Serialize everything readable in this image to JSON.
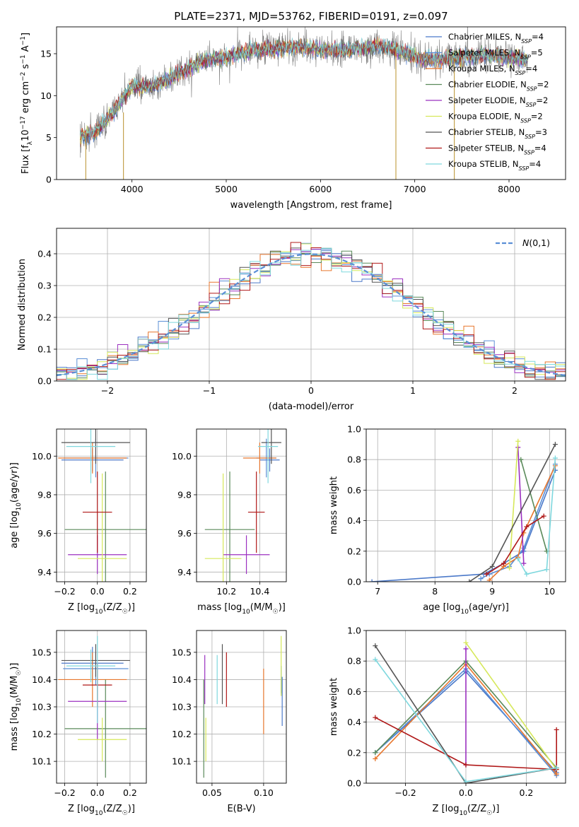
{
  "figure_title": "PLATE=2371, MJD=53762, FIBERID=0191, z=0.097",
  "series_colors": {
    "Chabrier MILES": "#4b79c9",
    "Salpeter MILES": "#5b8fd6",
    "Kroupa MILES": "#e8772e",
    "Chabrier ELODIE": "#5a8a5a",
    "Salpeter ELODIE": "#9b30c0",
    "Kroupa ELODIE": "#d6e85a",
    "Chabrier STELIB": "#555555",
    "Salpeter STELIB": "#b01818",
    "Kroupa STELIB": "#7fd8de"
  },
  "chart_data": [
    {
      "id": "spectrum",
      "type": "line",
      "title": "PLATE=2371, MJD=53762, FIBERID=0191, z=0.097",
      "xlabel": "wavelength [Angstrom, rest frame]",
      "ylabel": "Flux [f_λ10^-17 erg cm^-2 s^-1 A^-1]",
      "xlim": [
        3200,
        8600
      ],
      "ylim": [
        0,
        18.2
      ],
      "x_ticks": [
        4000,
        5000,
        6000,
        7000,
        8000
      ],
      "y_ticks": [
        0,
        5,
        10,
        15
      ],
      "grid": false,
      "legend_position": "right",
      "legend": [
        {
          "base": "Chabrier MILES, N",
          "sub": "SSP",
          "tail": "=4"
        },
        {
          "base": "Salpeter MILES, N",
          "sub": "SSP",
          "tail": "=5"
        },
        {
          "base": "Kroupa MILES, N",
          "sub": "SSP",
          "tail": "=4"
        },
        {
          "base": "Chabrier ELODIE, N",
          "sub": "SSP",
          "tail": "=2"
        },
        {
          "base": "Salpeter ELODIE, N",
          "sub": "SSP",
          "tail": "=2"
        },
        {
          "base": "Kroupa ELODIE, N",
          "sub": "SSP",
          "tail": "=2"
        },
        {
          "base": "Chabrier STELIB, N",
          "sub": "SSP",
          "tail": "=3"
        },
        {
          "base": "Salpeter STELIB, N",
          "sub": "SSP",
          "tail": "=4"
        },
        {
          "base": "Kroupa STELIB, N",
          "sub": "SSP",
          "tail": "=4"
        }
      ],
      "continuum": {
        "x": [
          3450,
          3600,
          3800,
          4000,
          4200,
          4400,
          4600,
          4800,
          5000,
          5200,
          5400,
          5600,
          5800,
          6000,
          6200,
          6400,
          6600,
          6800,
          7000,
          7200,
          7400,
          7600,
          7800,
          8000,
          8200
        ],
        "y": [
          5.0,
          5.6,
          8.0,
          11.2,
          11.0,
          12.0,
          13.3,
          14.3,
          14.6,
          15.2,
          15.5,
          15.7,
          15.8,
          15.5,
          15.4,
          15.6,
          15.9,
          15.5,
          14.7,
          14.3,
          14.5,
          14.7,
          14.8,
          14.5,
          14.3
        ]
      },
      "spikes": [
        {
          "x": 3510,
          "y0": 5.5,
          "y1": 0
        },
        {
          "x": 3910,
          "y0": 8.0,
          "y1": 0
        },
        {
          "x": 6800,
          "y0": 15.8,
          "y1": 0
        },
        {
          "x": 7420,
          "y0": 14.5,
          "y1": 0
        }
      ]
    },
    {
      "id": "residual-histogram",
      "type": "area",
      "xlabel": "(data-model)/error",
      "ylabel": "Normed distribution",
      "xlim": [
        -2.5,
        2.5
      ],
      "ylim": [
        0,
        0.48
      ],
      "x_ticks": [
        -2,
        -1,
        0,
        1,
        2
      ],
      "x_tick_labels": [
        "−2",
        "−1",
        "0",
        "1",
        "2"
      ],
      "y_ticks": [
        0.0,
        0.1,
        0.2,
        0.3,
        0.4
      ],
      "y_tick_labels": [
        "0.0",
        "0.1",
        "0.2",
        "0.3",
        "0.4"
      ],
      "grid": true,
      "legend_position": "top-right",
      "legend_label": "N(0,1)",
      "bin_width": 0.1,
      "bin_start": -2.5
    },
    {
      "id": "age-vs-metallicity",
      "type": "scatter",
      "xlabel": "Z [log10(Z/Z☉)]",
      "ylabel": "age [log10(age/yr)]",
      "xlim": [
        -0.25,
        0.3
      ],
      "ylim": [
        9.35,
        10.14
      ],
      "x_ticks": [
        -0.2,
        0.0,
        0.2
      ],
      "x_tick_labels": [
        "−0.2",
        "0.0",
        "0.2"
      ],
      "y_ticks": [
        9.4,
        9.6,
        9.8,
        10.0
      ],
      "y_tick_labels": [
        "9.4",
        "9.6",
        "9.8",
        "10.0"
      ],
      "grid": true,
      "points": [
        {
          "series": "Chabrier MILES",
          "x": -0.03,
          "y": 9.98,
          "xerr": 0.19,
          "yerr": 0.06
        },
        {
          "series": "Salpeter MILES",
          "x": -0.01,
          "y": 9.99,
          "xerr": 0.2,
          "yerr": 0.1
        },
        {
          "series": "Kroupa MILES",
          "x": -0.03,
          "y": 9.99,
          "xerr": 0.21,
          "yerr": 0.08
        },
        {
          "series": "Chabrier ELODIE",
          "x": 0.05,
          "y": 9.62,
          "xerr": 0.25,
          "yerr": 0.3
        },
        {
          "series": "Salpeter ELODIE",
          "x": 0.0,
          "y": 9.49,
          "xerr": 0.18,
          "yerr": 0.1
        },
        {
          "series": "Kroupa ELODIE",
          "x": 0.03,
          "y": 9.47,
          "xerr": 0.15,
          "yerr": 0.44
        },
        {
          "series": "Chabrier STELIB",
          "x": -0.01,
          "y": 10.07,
          "xerr": 0.21,
          "yerr": 0.11
        },
        {
          "series": "Salpeter STELIB",
          "x": 0.0,
          "y": 9.71,
          "xerr": 0.09,
          "yerr": 0.21
        },
        {
          "series": "Kroupa STELIB",
          "x": -0.04,
          "y": 10.05,
          "xerr": 0.15,
          "yerr": 0.19
        }
      ]
    },
    {
      "id": "age-vs-mass",
      "type": "scatter",
      "xlabel": "mass [log10(M/M☉)]",
      "ylabel": "",
      "xlim": [
        10.02,
        10.56
      ],
      "ylim": [
        9.35,
        10.14
      ],
      "x_ticks": [
        10.2,
        10.4
      ],
      "x_tick_labels": [
        "10.2",
        "10.4"
      ],
      "y_ticks": [
        9.4,
        9.6,
        9.8,
        10.0
      ],
      "y_tick_labels": [
        "9.4",
        "9.6",
        "9.8",
        "10.0"
      ],
      "grid": true,
      "points": [
        {
          "series": "Chabrier MILES",
          "x": 10.46,
          "y": 9.98,
          "xerr": 0.06,
          "yerr": 0.06
        },
        {
          "series": "Salpeter MILES",
          "x": 10.44,
          "y": 9.99,
          "xerr": 0.06,
          "yerr": 0.1
        },
        {
          "series": "Kroupa MILES",
          "x": 10.4,
          "y": 9.99,
          "xerr": 0.1,
          "yerr": 0.08
        },
        {
          "series": "Chabrier ELODIE",
          "x": 10.22,
          "y": 9.62,
          "xerr": 0.15,
          "yerr": 0.3
        },
        {
          "series": "Salpeter ELODIE",
          "x": 10.32,
          "y": 9.49,
          "xerr": 0.14,
          "yerr": 0.1
        },
        {
          "series": "Kroupa ELODIE",
          "x": 10.18,
          "y": 9.47,
          "xerr": 0.11,
          "yerr": 0.44
        },
        {
          "series": "Chabrier STELIB",
          "x": 10.47,
          "y": 10.07,
          "xerr": 0.06,
          "yerr": 0.11
        },
        {
          "series": "Salpeter STELIB",
          "x": 10.38,
          "y": 9.71,
          "xerr": 0.05,
          "yerr": 0.21
        },
        {
          "series": "Kroupa STELIB",
          "x": 10.45,
          "y": 10.05,
          "xerr": 0.06,
          "yerr": 0.19
        }
      ]
    },
    {
      "id": "weight-vs-age",
      "type": "line",
      "xlabel": "age [log10(age/yr)]",
      "ylabel": "mass weight",
      "xlim": [
        6.8,
        10.28
      ],
      "ylim": [
        0,
        1.0
      ],
      "x_ticks": [
        7,
        8,
        9,
        10
      ],
      "x_tick_labels": [
        "7",
        "8",
        "9",
        "10"
      ],
      "y_ticks": [
        0.0,
        0.2,
        0.4,
        0.6,
        0.8,
        1.0
      ],
      "y_tick_labels": [
        "0.0",
        "0.2",
        "0.4",
        "0.6",
        "0.8",
        "1.0"
      ],
      "grid": true,
      "series": [
        {
          "name": "Chabrier MILES",
          "x": [
            6.9,
            8.85,
            9.2,
            9.55,
            10.1
          ],
          "y": [
            0.0,
            0.05,
            0.12,
            0.2,
            0.73
          ]
        },
        {
          "name": "Salpeter MILES",
          "x": [
            8.8,
            8.95,
            9.3,
            9.55,
            10.1
          ],
          "y": [
            0.02,
            0.05,
            0.1,
            0.22,
            0.77
          ]
        },
        {
          "name": "Kroupa MILES",
          "x": [
            8.95,
            9.2,
            9.45,
            9.55,
            10.1
          ],
          "y": [
            0.01,
            0.1,
            0.16,
            0.32,
            0.76
          ]
        },
        {
          "name": "Chabrier ELODIE",
          "x": [
            9.5,
            9.95
          ],
          "y": [
            0.8,
            0.2
          ]
        },
        {
          "name": "Salpeter ELODIE",
          "x": [
            9.45,
            9.55
          ],
          "y": [
            0.88,
            0.12
          ]
        },
        {
          "name": "Kroupa ELODIE",
          "x": [
            9.3,
            9.45
          ],
          "y": [
            0.09,
            0.92
          ]
        },
        {
          "name": "Chabrier STELIB",
          "x": [
            8.6,
            9.0,
            10.1
          ],
          "y": [
            0.0,
            0.1,
            0.9
          ]
        },
        {
          "name": "Salpeter STELIB",
          "x": [
            8.9,
            9.2,
            9.6,
            9.9
          ],
          "y": [
            0.05,
            0.12,
            0.36,
            0.43
          ]
        },
        {
          "name": "Kroupa STELIB",
          "x": [
            9.45,
            9.6,
            9.95,
            10.1
          ],
          "y": [
            0.15,
            0.05,
            0.08,
            0.81
          ]
        }
      ]
    },
    {
      "id": "mass-vs-metallicity",
      "type": "scatter",
      "xlabel": "Z [log10(Z/Z☉)]",
      "ylabel": "mass [log10(M/M☉)]",
      "xlim": [
        -0.25,
        0.3
      ],
      "ylim": [
        10.02,
        10.58
      ],
      "x_ticks": [
        -0.2,
        0.0,
        0.2
      ],
      "x_tick_labels": [
        "−0.2",
        "0.0",
        "0.2"
      ],
      "y_ticks": [
        10.1,
        10.2,
        10.3,
        10.4,
        10.5
      ],
      "y_tick_labels": [
        "10.1",
        "10.2",
        "10.3",
        "10.4",
        "10.5"
      ],
      "grid": true,
      "points": [
        {
          "series": "Chabrier MILES",
          "x": -0.03,
          "y": 10.46,
          "xerr": 0.19,
          "yerr": 0.06
        },
        {
          "series": "Salpeter MILES",
          "x": -0.01,
          "y": 10.44,
          "xerr": 0.2,
          "yerr": 0.06
        },
        {
          "series": "Kroupa MILES",
          "x": -0.03,
          "y": 10.4,
          "xerr": 0.21,
          "yerr": 0.1
        },
        {
          "series": "Chabrier ELODIE",
          "x": 0.05,
          "y": 10.22,
          "xerr": 0.25,
          "yerr": 0.18
        },
        {
          "series": "Salpeter ELODIE",
          "x": 0.0,
          "y": 10.32,
          "xerr": 0.18,
          "yerr": 0.14
        },
        {
          "series": "Kroupa ELODIE",
          "x": 0.03,
          "y": 10.18,
          "xerr": 0.15,
          "yerr": 0.08
        },
        {
          "series": "Chabrier STELIB",
          "x": -0.01,
          "y": 10.47,
          "xerr": 0.21,
          "yerr": 0.06
        },
        {
          "series": "Salpeter STELIB",
          "x": 0.0,
          "y": 10.38,
          "xerr": 0.09,
          "yerr": 0.08
        },
        {
          "series": "Kroupa STELIB",
          "x": -0.04,
          "y": 10.45,
          "xerr": 0.15,
          "yerr": 0.06
        },
        {
          "series": "Kroupa STELIB",
          "x": 0.0,
          "y": 10.4,
          "xerr": 0.0,
          "yerr": 0.16
        }
      ]
    },
    {
      "id": "mass-vs-ebv",
      "type": "scatter",
      "xlabel": "E(B-V)",
      "ylabel": "",
      "xlim": [
        0.035,
        0.122
      ],
      "ylim": [
        10.02,
        10.58
      ],
      "x_ticks": [
        0.05,
        0.1
      ],
      "x_tick_labels": [
        "0.05",
        "0.10"
      ],
      "y_ticks": [
        10.1,
        10.2,
        10.3,
        10.4,
        10.5
      ],
      "y_tick_labels": [
        "10.1",
        "10.2",
        "10.3",
        "10.4",
        "10.5"
      ],
      "grid": true,
      "points": [
        {
          "series": "Chabrier MILES",
          "x": 0.118,
          "y": 10.32,
          "xerr": 0.0,
          "yerr": 0.09
        },
        {
          "series": "Salpeter MILES",
          "x": 0.117,
          "y": 10.4,
          "xerr": 0.0,
          "yerr": 0.05
        },
        {
          "series": "Kroupa MILES",
          "x": 0.1,
          "y": 10.32,
          "xerr": 0.0,
          "yerr": 0.12
        },
        {
          "series": "Chabrier ELODIE",
          "x": 0.042,
          "y": 10.22,
          "xerr": 0.0,
          "yerr": 0.18
        },
        {
          "series": "Salpeter ELODIE",
          "x": 0.043,
          "y": 10.4,
          "xerr": 0.0,
          "yerr": 0.09
        },
        {
          "series": "Kroupa ELODIE",
          "x": 0.044,
          "y": 10.18,
          "xerr": 0.0,
          "yerr": 0.08
        },
        {
          "series": "Chabrier STELIB",
          "x": 0.06,
          "y": 10.42,
          "xerr": 0.0,
          "yerr": 0.11
        },
        {
          "series": "Salpeter STELIB",
          "x": 0.064,
          "y": 10.4,
          "xerr": 0.0,
          "yerr": 0.1
        },
        {
          "series": "Kroupa STELIB",
          "x": 0.055,
          "y": 10.4,
          "xerr": 0.0,
          "yerr": 0.09
        },
        {
          "series": "Kroupa ELODIE",
          "x": 0.117,
          "y": 10.45,
          "xerr": 0.0,
          "yerr": 0.11
        }
      ]
    },
    {
      "id": "weight-vs-metallicity",
      "type": "line",
      "xlabel": "Z [log10(Z/Z☉)]",
      "ylabel": "mass weight",
      "xlim": [
        -0.33,
        0.33
      ],
      "ylim": [
        0,
        1.0
      ],
      "x_ticks": [
        -0.2,
        0.0,
        0.2
      ],
      "x_tick_labels": [
        "−0.2",
        "0.0",
        "0.2"
      ],
      "y_ticks": [
        0.0,
        0.2,
        0.4,
        0.6,
        0.8,
        1.0
      ],
      "y_tick_labels": [
        "0.0",
        "0.2",
        "0.4",
        "0.6",
        "0.8",
        "1.0"
      ],
      "grid": true,
      "series": [
        {
          "name": "Chabrier MILES",
          "x": [
            -0.3,
            0.0,
            0.3
          ],
          "y": [
            0.2,
            0.73,
            0.07
          ]
        },
        {
          "name": "Salpeter MILES",
          "x": [
            -0.3,
            0.0,
            0.3
          ],
          "y": [
            0.2,
            0.75,
            0.05
          ]
        },
        {
          "name": "Kroupa MILES",
          "x": [
            -0.3,
            0.0,
            0.3
          ],
          "y": [
            0.16,
            0.78,
            0.06
          ]
        },
        {
          "name": "Chabrier ELODIE",
          "x": [
            -0.3,
            0.0,
            0.3
          ],
          "y": [
            0.2,
            0.8,
            0.1
          ]
        },
        {
          "name": "Salpeter ELODIE",
          "x": [
            0.0,
            0.0
          ],
          "y": [
            0.12,
            0.88
          ]
        },
        {
          "name": "Kroupa ELODIE",
          "x": [
            0.0,
            0.3
          ],
          "y": [
            0.92,
            0.09
          ]
        },
        {
          "name": "Chabrier STELIB",
          "x": [
            -0.3,
            0.0,
            0.3
          ],
          "y": [
            0.9,
            0.0,
            0.1
          ]
        },
        {
          "name": "Salpeter STELIB",
          "x": [
            -0.3,
            0.0,
            0.3,
            0.3
          ],
          "y": [
            0.43,
            0.12,
            0.09,
            0.35
          ]
        },
        {
          "name": "Kroupa STELIB",
          "x": [
            -0.3,
            0.0,
            0.3
          ],
          "y": [
            0.81,
            0.01,
            0.1
          ]
        }
      ]
    }
  ]
}
